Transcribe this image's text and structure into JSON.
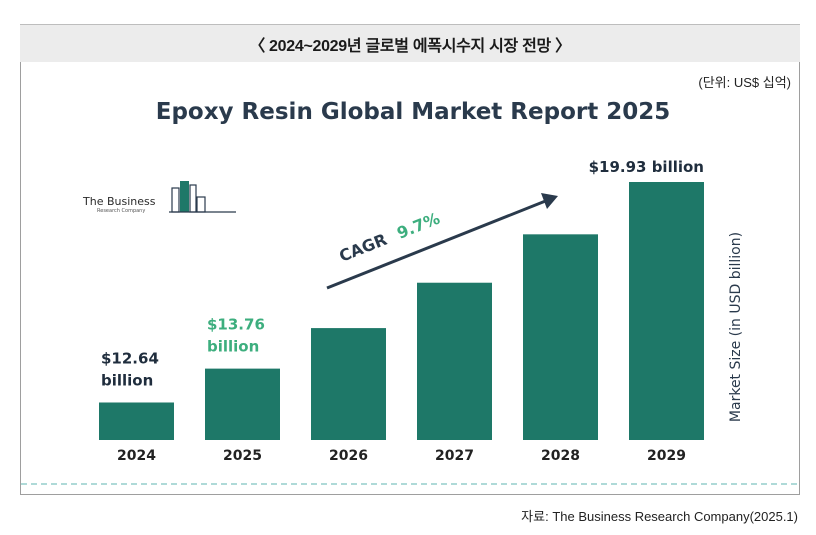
{
  "header": {
    "title": "〈 2024~2029년 글로벌 에폭시수지 시장 전망 〉",
    "unit_note": "(단위: US$ 십억)"
  },
  "source_note": "자료: The Business Research Company(2025.1)",
  "logo": {
    "line1": "The Business",
    "line2": "Research Company"
  },
  "colors": {
    "bar": "#1e7868",
    "title_text": "#2a3a4c",
    "highlight": "#3dae7e",
    "dark_label": "#1f2d3d"
  },
  "chart_data": {
    "type": "bar",
    "title": "Epoxy Resin Global Market Report 2025",
    "categories": [
      "2024",
      "2025",
      "2026",
      "2027",
      "2028",
      "2029"
    ],
    "values": [
      12.64,
      13.76,
      15.1,
      16.6,
      18.2,
      19.93
    ],
    "ylabel": "Market Size (in USD billion)",
    "xlabel": "",
    "ylim": [
      11.4,
      19.93
    ],
    "grid": false,
    "legend": "none",
    "data_labels": [
      {
        "index": 0,
        "line1": "$12.64",
        "line2": "billion",
        "color": "#1f2d3d"
      },
      {
        "index": 1,
        "line1": "$13.76",
        "line2": "billion",
        "color": "#3dae7e"
      },
      {
        "index": 5,
        "line1": "$19.93 billion",
        "line2": "",
        "color": "#1f2d3d"
      }
    ],
    "annotation": {
      "prefix": "CAGR",
      "value": "9.7%"
    }
  }
}
